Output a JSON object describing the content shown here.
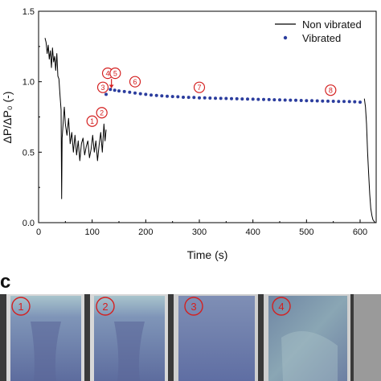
{
  "chart_data": {
    "type": "line",
    "title": "",
    "xlabel": "Time (s)",
    "ylabel": "ΔP/ΔP₀ (-)",
    "xlim": [
      0,
      630
    ],
    "ylim": [
      0,
      1.5
    ],
    "x_ticks": [
      0,
      100,
      200,
      300,
      400,
      500,
      600
    ],
    "y_ticks": [
      0.0,
      0.5,
      1.0,
      1.5
    ],
    "x_tick_labels": [
      "0",
      "100",
      "200",
      "300",
      "400",
      "500",
      "600"
    ],
    "y_tick_labels": [
      "0.0",
      "0.5",
      "1.0",
      "1.5"
    ],
    "grid": false,
    "legend_position": "top-right",
    "series": [
      {
        "name": "Non vibrated",
        "style": "line",
        "color": "#000000",
        "x": [
          12,
          14,
          16,
          18,
          20,
          22,
          24,
          26,
          28,
          30,
          32,
          34,
          36,
          38,
          40,
          42,
          43,
          44,
          46,
          48,
          50,
          53,
          56,
          59,
          62,
          65,
          68,
          71,
          74,
          77,
          80,
          83,
          86,
          89,
          92,
          95,
          98,
          101,
          104,
          107,
          110,
          113,
          116,
          119,
          122,
          124,
          126
        ],
        "y": [
          1.31,
          1.28,
          1.2,
          1.26,
          1.16,
          1.22,
          1.1,
          1.24,
          1.14,
          1.18,
          1.08,
          1.2,
          1.04,
          1.02,
          0.9,
          0.8,
          0.17,
          0.6,
          0.72,
          0.82,
          0.7,
          0.62,
          0.74,
          0.56,
          0.64,
          0.5,
          0.62,
          0.48,
          0.58,
          0.44,
          0.56,
          0.6,
          0.48,
          0.54,
          0.58,
          0.46,
          0.52,
          0.62,
          0.5,
          0.58,
          0.44,
          0.55,
          0.64,
          0.5,
          0.7,
          0.58,
          0.66
        ]
      },
      {
        "name": "Non vibrated (tail)",
        "style": "line",
        "color": "#000000",
        "x": [
          608,
          610,
          612,
          614,
          616,
          618,
          620,
          622,
          624,
          626,
          628
        ],
        "y": [
          0.88,
          0.82,
          0.7,
          0.5,
          0.34,
          0.2,
          0.1,
          0.05,
          0.02,
          0.01,
          0.0
        ]
      },
      {
        "name": "Vibrated",
        "style": "dots",
        "color": "#2b3d9e",
        "x": [
          126,
          134,
          142,
          150,
          160,
          170,
          180,
          190,
          200,
          210,
          220,
          230,
          240,
          250,
          260,
          270,
          280,
          290,
          300,
          310,
          320,
          330,
          340,
          350,
          360,
          370,
          380,
          390,
          400,
          410,
          420,
          430,
          440,
          450,
          460,
          470,
          480,
          490,
          500,
          510,
          520,
          530,
          540,
          550,
          560,
          570,
          580,
          590,
          600
        ],
        "y": [
          0.91,
          0.945,
          0.94,
          0.935,
          0.93,
          0.925,
          0.92,
          0.915,
          0.91,
          0.905,
          0.902,
          0.9,
          0.897,
          0.895,
          0.893,
          0.89,
          0.889,
          0.888,
          0.886,
          0.885,
          0.884,
          0.883,
          0.882,
          0.881,
          0.88,
          0.879,
          0.878,
          0.877,
          0.876,
          0.875,
          0.874,
          0.873,
          0.872,
          0.871,
          0.87,
          0.869,
          0.868,
          0.867,
          0.866,
          0.865,
          0.864,
          0.863,
          0.862,
          0.861,
          0.86,
          0.86,
          0.859,
          0.858,
          0.855
        ]
      }
    ],
    "annotations": [
      {
        "label": "1",
        "x": 100,
        "y": 0.72
      },
      {
        "label": "2",
        "x": 118,
        "y": 0.78
      },
      {
        "label": "3",
        "x": 120,
        "y": 0.96
      },
      {
        "label": "4",
        "x": 129,
        "y": 1.06
      },
      {
        "label": "5",
        "x": 143,
        "y": 1.06
      },
      {
        "label": "6",
        "x": 180,
        "y": 1.0
      },
      {
        "label": "7",
        "x": 300,
        "y": 0.96
      },
      {
        "label": "8",
        "x": 545,
        "y": 0.94
      }
    ]
  },
  "panel_c": {
    "letter": "c",
    "photos": [
      {
        "label": "1"
      },
      {
        "label": "2"
      },
      {
        "label": "3"
      },
      {
        "label": "4"
      }
    ]
  }
}
